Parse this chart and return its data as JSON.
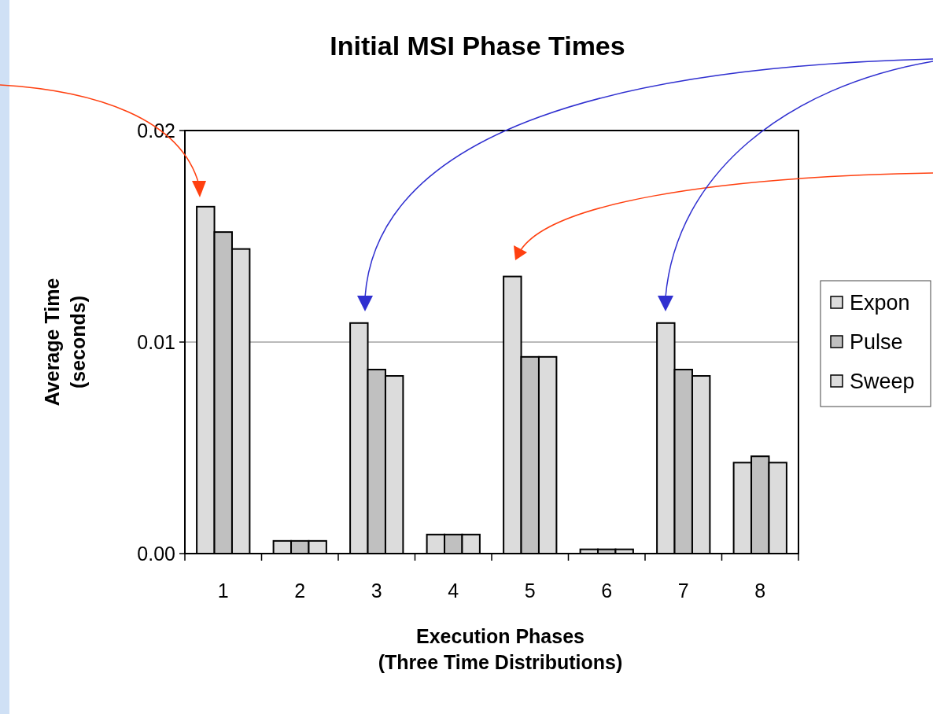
{
  "chart_data": {
    "type": "bar",
    "title": "Initial MSI Phase Times",
    "xlabel": "Execution Phases\n(Three Time Distributions)",
    "ylabel": "Average Time\n(seconds)",
    "categories": [
      "1",
      "2",
      "3",
      "4",
      "5",
      "6",
      "7",
      "8"
    ],
    "series": [
      {
        "name": "Expon",
        "color": "#dcdcdc",
        "values": [
          0.0164,
          0.0006,
          0.0109,
          0.0009,
          0.0131,
          0.0002,
          0.0109,
          0.0043
        ]
      },
      {
        "name": "Pulse",
        "color": "#c0c0c0",
        "values": [
          0.0152,
          0.0006,
          0.0087,
          0.0009,
          0.0093,
          0.0002,
          0.0087,
          0.0046
        ]
      },
      {
        "name": "Sweep",
        "color": "#dcdcdc",
        "values": [
          0.0144,
          0.0006,
          0.0084,
          0.0009,
          0.0093,
          0.0002,
          0.0084,
          0.0043
        ]
      }
    ],
    "ylim": [
      0,
      0.02
    ],
    "yticks": [
      {
        "value": 0,
        "label": "0.00"
      },
      0.01,
      0.02
    ],
    "grid": "y",
    "legend": "right"
  }
}
